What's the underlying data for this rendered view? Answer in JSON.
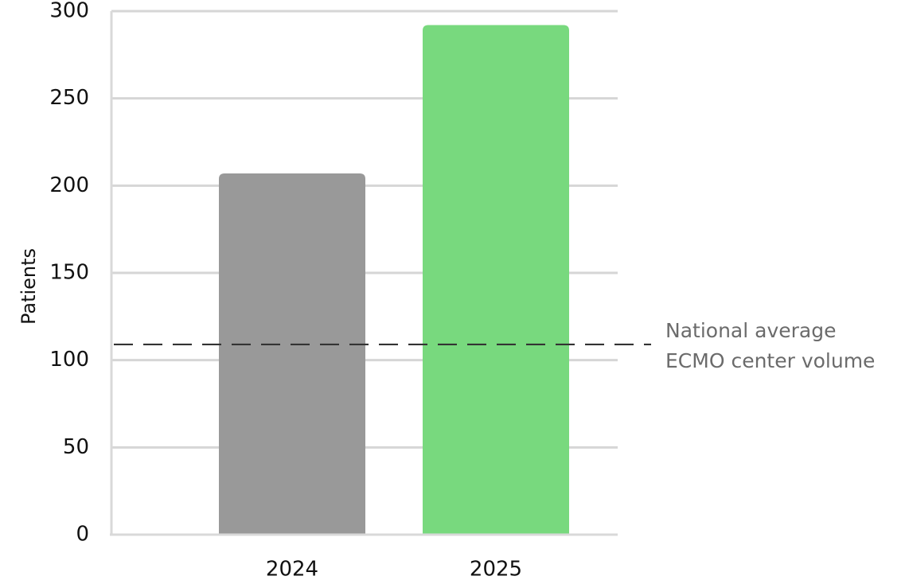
{
  "chart_data": {
    "type": "bar",
    "categories": [
      "2024",
      "2025"
    ],
    "values": [
      207,
      292
    ],
    "colors": [
      "#999999",
      "#78d97e"
    ],
    "title": "",
    "xlabel": "",
    "ylabel": "Patients",
    "ylim": [
      0,
      300
    ],
    "yticks": [
      0,
      50,
      100,
      150,
      200,
      250,
      300
    ],
    "grid": true,
    "reference_line": {
      "value": 109,
      "style": "dashed",
      "color": "#333333",
      "label_lines": [
        "National average",
        "ECMO center volume"
      ]
    }
  }
}
